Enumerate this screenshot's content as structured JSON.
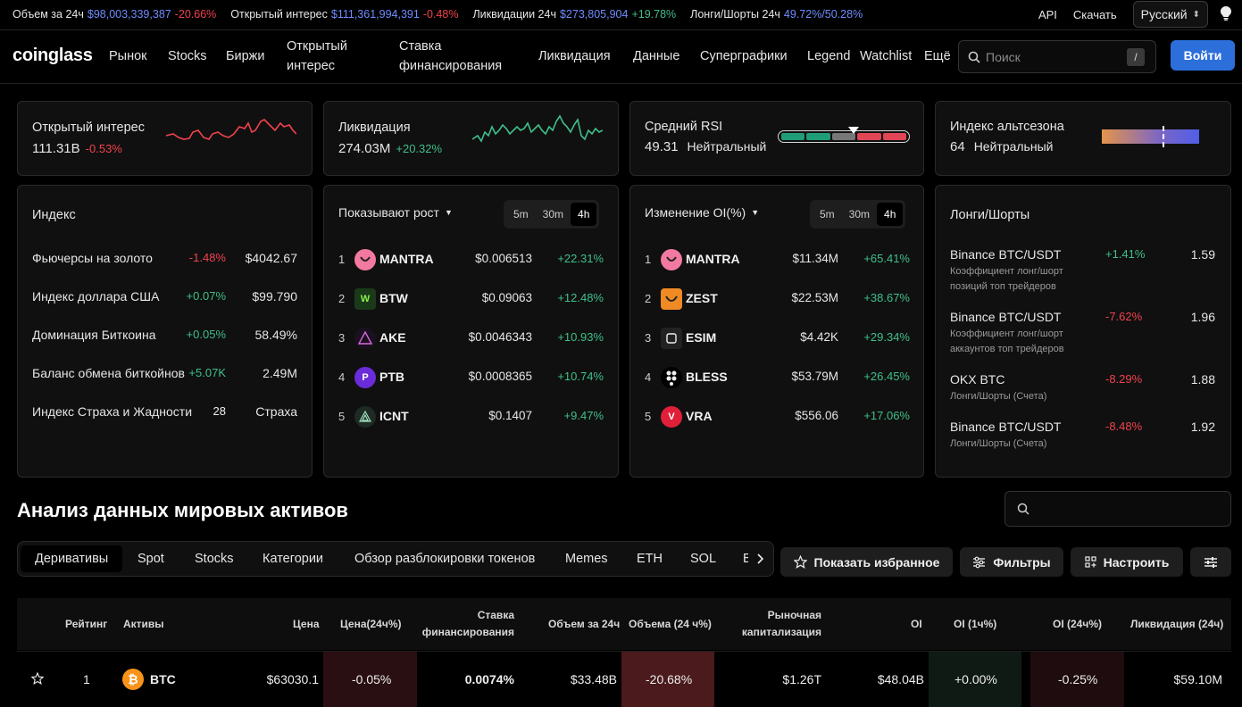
{
  "ticker": [
    {
      "label": "Объем за 24ч",
      "value": "$98,003,339,387",
      "change": "-20.66%",
      "dir": "down"
    },
    {
      "label": "Открытый интерес",
      "value": "$111,361,994,391",
      "change": "-0.48%",
      "dir": "down"
    },
    {
      "label": "Ликвидации 24ч",
      "value": "$273,805,904",
      "change": "+19.78%",
      "dir": "up"
    },
    {
      "label": "Лонги/Шорты 24ч",
      "value": "49.72%/50.28%",
      "change": "",
      "dir": ""
    }
  ],
  "topright": {
    "api": "API",
    "download": "Скачать",
    "language": "Русский"
  },
  "nav": {
    "logo": "coinglass",
    "items": [
      "Рынок",
      "Stocks",
      "Биржи",
      "Открытый интерес",
      "Ставка финансирования",
      "Ликвидация",
      "Данные",
      "Суперграфики",
      "Legend",
      "Watchlist",
      "Ещё"
    ],
    "search_placeholder": "Поиск",
    "search_key": "/",
    "login": "Войти"
  },
  "cards": {
    "oi": {
      "title": "Открытый интерес",
      "value": "111.31B",
      "change": "-0.53%"
    },
    "liq": {
      "title": "Ликвидация",
      "value": "274.03M",
      "change": "+20.32%"
    },
    "rsi": {
      "title": "Средний RSI",
      "value": "49.31",
      "label": "Нейтральный"
    },
    "alt": {
      "title": "Индекс альтсезона",
      "value": "64",
      "label": "Нейтральный"
    }
  },
  "colors": {
    "up": "#3fbf8a",
    "down": "#f0424e",
    "accent": "#2c6fdb"
  },
  "index": {
    "title": "Индекс",
    "rows": [
      {
        "name": "Фьючерсы на золото",
        "change": "-1.48%",
        "dir": "down",
        "value": "$4042.67"
      },
      {
        "name": "Индекс доллара США",
        "change": "+0.07%",
        "dir": "up",
        "value": "$99.790"
      },
      {
        "name": "Доминация Биткоина",
        "change": "+0.05%",
        "dir": "up",
        "value": "58.49%"
      },
      {
        "name": "Баланс обмена биткойнов",
        "change": "+5.07K",
        "dir": "up",
        "value": "2.49M"
      },
      {
        "name": "Индекс Страха и Жадности",
        "change": "28",
        "dir": "",
        "value": "Страха"
      }
    ]
  },
  "gainers": {
    "title": "Показывают рост",
    "timeframes": [
      "5m",
      "30m",
      "4h"
    ],
    "active": "4h",
    "rows": [
      {
        "rank": "1",
        "symbol": "MANTRA",
        "price": "$0.006513",
        "change": "+22.31%",
        "icon": "mantra-icon"
      },
      {
        "rank": "2",
        "symbol": "BTW",
        "price": "$0.09063",
        "change": "+12.48%",
        "icon": "btw-icon"
      },
      {
        "rank": "3",
        "symbol": "AKE",
        "price": "$0.0046343",
        "change": "+10.93%",
        "icon": "ake-icon"
      },
      {
        "rank": "4",
        "symbol": "PTB",
        "price": "$0.0008365",
        "change": "+10.74%",
        "icon": "ptb-icon"
      },
      {
        "rank": "5",
        "symbol": "ICNT",
        "price": "$0.1407",
        "change": "+9.47%",
        "icon": "icnt-icon"
      }
    ]
  },
  "oichange": {
    "title": "Изменение OI(%)",
    "timeframes": [
      "5m",
      "30m",
      "4h"
    ],
    "active": "4h",
    "rows": [
      {
        "rank": "1",
        "symbol": "MANTRA",
        "value": "$11.34M",
        "change": "+65.41%",
        "icon": "mantra-icon"
      },
      {
        "rank": "2",
        "symbol": "ZEST",
        "value": "$22.53M",
        "change": "+38.67%",
        "icon": "zest-icon"
      },
      {
        "rank": "3",
        "symbol": "ESIM",
        "value": "$4.42K",
        "change": "+29.34%",
        "icon": "esim-icon"
      },
      {
        "rank": "4",
        "symbol": "BLESS",
        "value": "$53.79M",
        "change": "+26.45%",
        "icon": "bless-icon"
      },
      {
        "rank": "5",
        "symbol": "VRA",
        "value": "$556.06",
        "change": "+17.06%",
        "icon": "vra-icon"
      }
    ]
  },
  "longshort": {
    "title": "Лонги/Шорты",
    "rows": [
      {
        "exchange": "Binance BTC/USDT",
        "sub": "Коэффициент лонг/шорт позиций топ трейдеров",
        "change": "+1.41%",
        "dir": "up",
        "ratio": "1.59"
      },
      {
        "exchange": "Binance BTC/USDT",
        "sub": "Коэффициент лонг/шорт аккаунтов топ трейдеров",
        "change": "-7.62%",
        "dir": "down",
        "ratio": "1.96"
      },
      {
        "exchange": "OKX BTC",
        "sub": "Лонги/Шорты (Счета)",
        "change": "-8.29%",
        "dir": "down",
        "ratio": "1.88"
      },
      {
        "exchange": "Binance BTC/USDT",
        "sub": "Лонги/Шорты (Счета)",
        "change": "-8.48%",
        "dir": "down",
        "ratio": "1.92"
      }
    ]
  },
  "section": {
    "title": "Анализ данных мировых активов",
    "tabs": [
      "Деривативы",
      "Spot",
      "Stocks",
      "Категории",
      "Обзор разблокировки токенов",
      "Memes",
      "ETH",
      "SOL",
      "BSC"
    ],
    "active_tab": "Деривативы",
    "buttons": {
      "favorites": "Показать избранное",
      "filters": "Фильтры",
      "customize": "Настроить"
    }
  },
  "table": {
    "headers": {
      "rank": "Рейтинг",
      "asset": "Активы",
      "price": "Цена",
      "price24": "Цена(24ч%)",
      "funding1": "Ставка",
      "funding2": "финансирования",
      "vol24": "Объем за 24ч",
      "vol24pct": "Объема (24 ч%)",
      "mcap1": "Рыночная",
      "mcap2": "капитализация",
      "oi": "OI",
      "oi1h": "OI (1ч%)",
      "oi24h": "OI (24ч%)",
      "liq24": "Ликвидация (24ч)"
    },
    "rows": [
      {
        "rank": "1",
        "asset": "BTC",
        "price": "$63030.1",
        "price24": "-0.05%",
        "funding": "0.0074%",
        "vol24": "$33.48B",
        "vol24pct": "-20.68%",
        "mcap": "$1.26T",
        "oi": "$48.04B",
        "oi1h": "+0.00%",
        "oi24h": "-0.25%",
        "liq24": "$59.10M"
      }
    ]
  }
}
